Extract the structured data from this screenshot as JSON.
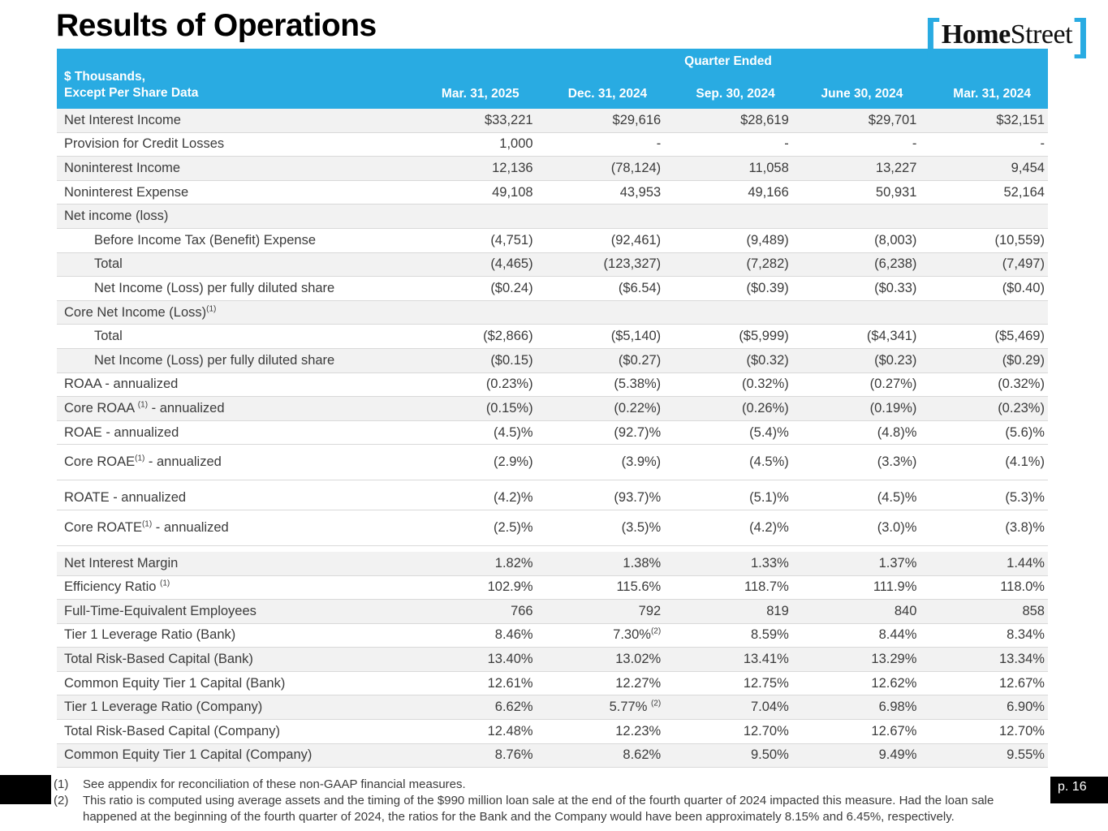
{
  "page": {
    "title": "Results of Operations",
    "page_number": "p. 16"
  },
  "logo": {
    "bracket_open": "[",
    "name_bold": "Home",
    "name_light": "Street",
    "bracket_close": "]"
  },
  "colors": {
    "brand_cyan": "#29ABE2",
    "row_shade": "#F2F2F2",
    "divider": "#D9D9D9",
    "text": "#3B3B3B",
    "bar_black": "#000000"
  },
  "table": {
    "header": {
      "group_label": "Quarter Ended",
      "left_line1": "$ Thousands,",
      "left_line2": "Except Per Share Data",
      "columns": [
        "Mar. 31, 2025",
        "Dec. 31, 2024",
        "Sep. 30, 2024",
        "June 30, 2024",
        "Mar. 31, 2024"
      ]
    },
    "rows": [
      {
        "label": "Net Interest Income",
        "shaded": true,
        "values": [
          "$33,221",
          "$29,616",
          "$28,619",
          "$29,701",
          "$32,151"
        ]
      },
      {
        "label": "Provision for Credit Losses",
        "shaded": false,
        "values": [
          "1,000",
          "-",
          "-",
          "-",
          "-"
        ]
      },
      {
        "label": "Noninterest Income",
        "shaded": true,
        "values": [
          "12,136",
          "(78,124)",
          "11,058",
          "13,227",
          "9,454"
        ]
      },
      {
        "label": "Noninterest Expense",
        "shaded": false,
        "values": [
          "49,108",
          "43,953",
          "49,166",
          "50,931",
          "52,164"
        ]
      },
      {
        "label": "Net income (loss)",
        "section": true,
        "shaded": true,
        "values": []
      },
      {
        "label": "Before Income Tax (Benefit) Expense",
        "indent": true,
        "shaded": false,
        "values": [
          "(4,751)",
          "(92,461)",
          "(9,489)",
          "(8,003)",
          "(10,559)"
        ]
      },
      {
        "label": "Total",
        "indent": true,
        "shaded": true,
        "values": [
          "(4,465)",
          "(123,327)",
          "(7,282)",
          "(6,238)",
          "(7,497)"
        ]
      },
      {
        "label": "Net Income (Loss) per fully diluted share",
        "indent": true,
        "shaded": false,
        "values": [
          "($0.24)",
          "($6.54)",
          "($0.39)",
          "($0.33)",
          "($0.40)"
        ]
      },
      {
        "label": "Core Net Income (Loss)",
        "sup": "(1)",
        "section": true,
        "shaded": true,
        "values": []
      },
      {
        "label": "Total",
        "indent": true,
        "shaded": false,
        "values": [
          "($2,866)",
          "($5,140)",
          "($5,999)",
          "($4,341)",
          "($5,469)"
        ]
      },
      {
        "label": "Net Income (Loss) per fully diluted share",
        "indent": true,
        "shaded": true,
        "values": [
          "($0.15)",
          "($0.27)",
          "($0.32)",
          "($0.23)",
          "($0.29)"
        ]
      },
      {
        "label": "ROAA - annualized",
        "shaded": false,
        "values": [
          "(0.23%)",
          "(5.38%)",
          "(0.32%)",
          "(0.27%)",
          "(0.32%)"
        ]
      },
      {
        "label": "Core ROAA ",
        "sup": "(1)",
        "label_post": " - annualized",
        "shaded": true,
        "values": [
          "(0.15%)",
          "(0.22%)",
          "(0.26%)",
          "(0.19%)",
          "(0.23%)"
        ]
      },
      {
        "label": "ROAE - annualized",
        "shaded": false,
        "values": [
          "(4.5)%",
          "(92.7)%",
          "(5.4)%",
          "(4.8)%",
          "(5.6)%"
        ]
      },
      {
        "label": "Core ROAE",
        "sup": "(1)",
        "label_post": " - annualized",
        "shaded": false,
        "tall": true,
        "gap_after": true,
        "values": [
          "(2.9%)",
          "(3.9%)",
          "(4.5%)",
          "(3.3%)",
          "(4.1%)"
        ]
      },
      {
        "label": "ROATE - annualized",
        "shaded": false,
        "values": [
          "(4.2)%",
          "(93.7)%",
          "(5.1)%",
          "(4.5)%",
          "(5.3)%"
        ]
      },
      {
        "label": "Core ROATE",
        "sup": "(1)",
        "label_post": " - annualized",
        "shaded": false,
        "tall": true,
        "gap_after": true,
        "values": [
          "(2.5)%",
          "(3.5)%",
          "(4.2)%",
          "(3.0)%",
          "(3.8)%"
        ]
      },
      {
        "label": "Net Interest Margin",
        "shaded": true,
        "values": [
          "1.82%",
          "1.38%",
          "1.33%",
          "1.37%",
          "1.44%"
        ]
      },
      {
        "label": "Efficiency Ratio ",
        "sup": "(1)",
        "shaded": false,
        "values": [
          "102.9%",
          "115.6%",
          "118.7%",
          "111.9%",
          "118.0%"
        ]
      },
      {
        "label": "Full-Time-Equivalent Employees",
        "shaded": true,
        "values": [
          "766",
          "792",
          "819",
          "840",
          "858"
        ]
      },
      {
        "label": "Tier 1 Leverage Ratio (Bank)",
        "shaded": false,
        "values": [
          "8.46%",
          "7.30%",
          "8.59%",
          "8.44%",
          "8.34%"
        ],
        "value_sups": [
          "",
          "(2)",
          "",
          "",
          ""
        ]
      },
      {
        "label": "Total Risk-Based Capital (Bank)",
        "shaded": true,
        "values": [
          "13.40%",
          "13.02%",
          "13.41%",
          "13.29%",
          "13.34%"
        ]
      },
      {
        "label": "Common Equity Tier 1 Capital (Bank)",
        "shaded": false,
        "values": [
          "12.61%",
          "12.27%",
          "12.75%",
          "12.62%",
          "12.67%"
        ]
      },
      {
        "label": "Tier 1 Leverage Ratio (Company)",
        "shaded": true,
        "values": [
          "6.62%",
          "5.77% ",
          "7.04%",
          "6.98%",
          "6.90%"
        ],
        "value_sups": [
          "",
          "(2)",
          "",
          "",
          ""
        ]
      },
      {
        "label": "Total Risk-Based Capital (Company)",
        "shaded": false,
        "values": [
          "12.48%",
          "12.23%",
          "12.70%",
          "12.67%",
          "12.70%"
        ]
      },
      {
        "label": "Common Equity Tier 1 Capital (Company)",
        "shaded": true,
        "values": [
          "8.76%",
          "8.62%",
          "9.50%",
          "9.49%",
          "9.55%"
        ]
      }
    ]
  },
  "footnotes": [
    {
      "marker": "(1)",
      "text": "See appendix for reconciliation of these non-GAAP financial measures."
    },
    {
      "marker": "(2)",
      "text": "This ratio is computed using average assets and the timing of the $990 million loan sale at the end of the fourth quarter of 2024 impacted this measure. Had the loan sale happened at the beginning of the fourth quarter of 2024, the ratios for the Bank and the Company would have been approximately 8.15% and 6.45%, respectively."
    }
  ]
}
